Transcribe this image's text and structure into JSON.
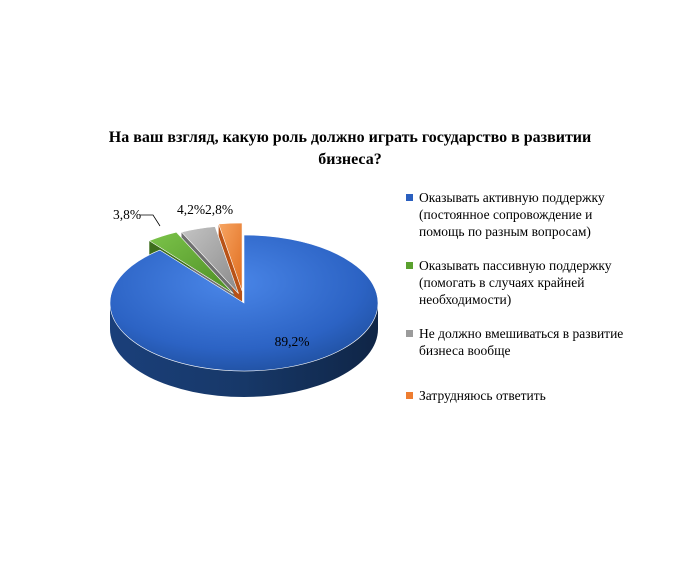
{
  "chart_data": {
    "type": "pie",
    "title": "На ваш взгляд, какую роль должно играть государство в развитии бизнеса?",
    "categories": [
      "Оказывать активную поддержку (постоянное сопровождение и помощь по разным вопросам)",
      "Оказывать пассивную поддержку (помогать в случаях крайней необходимости)",
      "Не должно вмешиваться в развитие бизнеса вообще",
      "Затрудняюсь ответить"
    ],
    "values": [
      89.2,
      3.8,
      4.2,
      2.8
    ],
    "data_labels": [
      "89,2%",
      "3,8%",
      "4,2%",
      "2,8%"
    ],
    "colors": [
      "#2a5fbf",
      "#5aa12e",
      "#9b9b9b",
      "#ee7d31"
    ],
    "legend_position": "right",
    "exploded": true,
    "three_d": true
  },
  "legend": {
    "items": [
      "Оказывать активную поддержку\n(постоянное сопровождение и\nпомощь по разным вопросам)",
      "Оказывать пассивную поддержку\n(помогать в случаях крайней\nнеобходимости)",
      "Не должно вмешиваться в развитие\nбизнеса вообще",
      "Затрудняюсь ответить"
    ]
  }
}
